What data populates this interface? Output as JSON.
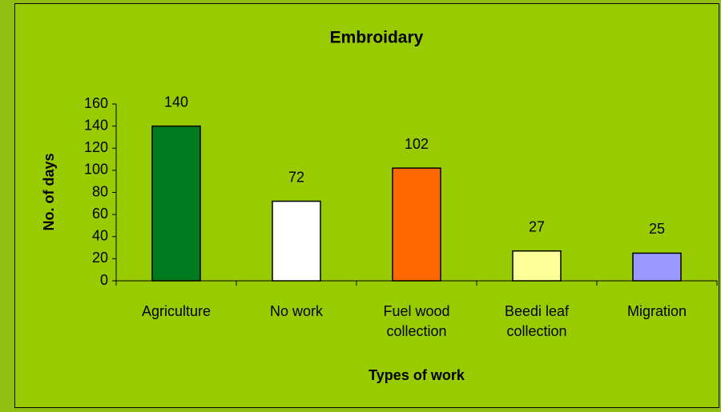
{
  "chart_data": {
    "type": "bar",
    "title": "Embroidary",
    "categories": [
      "Agriculture",
      "No work",
      "Fuel wood collection",
      "Beedi leaf collection",
      "Migration"
    ],
    "values": [
      140,
      72,
      102,
      27,
      25
    ],
    "colors": [
      "#007a1e",
      "#ffffff",
      "#ff6600",
      "#ffff99",
      "#9999ff"
    ],
    "ylim": [
      0,
      160
    ],
    "yticks": [
      0,
      20,
      40,
      60,
      80,
      100,
      120,
      140,
      160
    ],
    "xlabel": "Types of work",
    "ylabel": "No. of days"
  }
}
